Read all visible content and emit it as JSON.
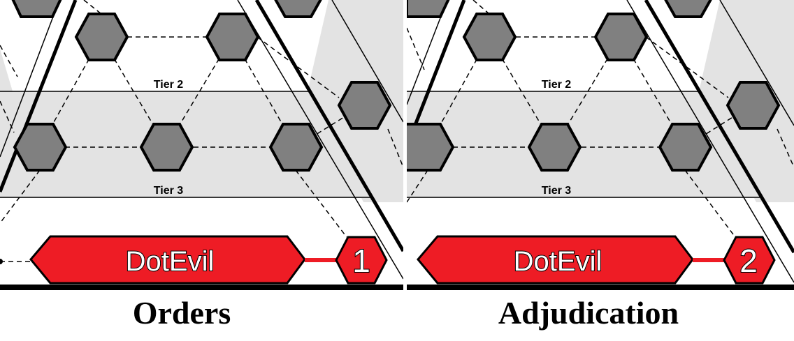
{
  "panels": [
    {
      "caption": "Orders",
      "tier_labels": [
        "Tier 2",
        "Tier 3"
      ],
      "player_name": "DotEvil",
      "turn_number": "1"
    },
    {
      "caption": "Adjudication",
      "tier_labels": [
        "Tier 2",
        "Tier 3"
      ],
      "player_name": "DotEvil",
      "turn_number": "2"
    }
  ],
  "colors": {
    "tier_band": "#e3e3e3",
    "hex_fill": "#808080",
    "banner_fill": "#ee1c25",
    "outline": "#000000"
  },
  "icons": [
    "hex-space-icon",
    "player-banner-icon",
    "turn-badge-icon"
  ]
}
